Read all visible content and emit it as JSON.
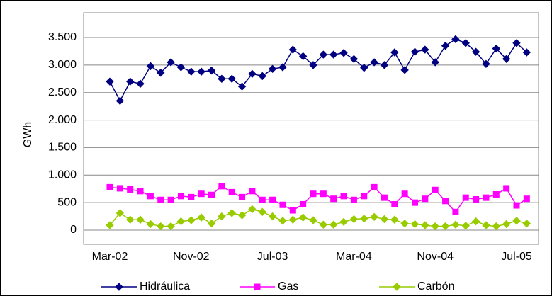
{
  "chart_data": {
    "type": "line",
    "y_label": "GWh",
    "categories": [
      "Mar-02",
      null,
      null,
      null,
      null,
      null,
      null,
      null,
      "Nov-02",
      null,
      null,
      null,
      null,
      null,
      null,
      null,
      "Jul-03",
      null,
      null,
      null,
      null,
      null,
      null,
      null,
      "Mar-04",
      null,
      null,
      null,
      null,
      null,
      null,
      null,
      "Nov-04",
      null,
      null,
      null,
      null,
      null,
      null,
      null,
      "Jul-05",
      null
    ],
    "series": [
      {
        "name": "Hidráulica",
        "color": "#000080",
        "marker": "diamond",
        "values": [
          2700,
          2350,
          2700,
          2660,
          2980,
          2860,
          3050,
          2960,
          2880,
          2880,
          2900,
          2750,
          2750,
          2610,
          2840,
          2800,
          2930,
          2960,
          3280,
          3160,
          3000,
          3190,
          3190,
          3220,
          3110,
          2950,
          3050,
          3000,
          3230,
          2910,
          3240,
          3280,
          3050,
          3350,
          3470,
          3400,
          3240,
          3020,
          3300,
          3110,
          3400,
          3230
        ]
      },
      {
        "name": "Gas",
        "color": "#ff00ff",
        "marker": "square",
        "values": [
          780,
          760,
          740,
          710,
          620,
          550,
          550,
          620,
          600,
          660,
          640,
          800,
          690,
          600,
          710,
          550,
          550,
          460,
          360,
          470,
          660,
          660,
          570,
          620,
          550,
          620,
          780,
          590,
          470,
          660,
          500,
          570,
          730,
          530,
          330,
          590,
          560,
          590,
          650,
          760,
          450,
          570
        ]
      },
      {
        "name": "Carbón",
        "color": "#99cc00",
        "marker": "diamond",
        "values": [
          90,
          310,
          190,
          190,
          110,
          70,
          70,
          160,
          180,
          230,
          120,
          250,
          310,
          270,
          380,
          330,
          250,
          170,
          190,
          230,
          180,
          100,
          100,
          150,
          200,
          210,
          240,
          200,
          190,
          120,
          110,
          90,
          70,
          70,
          100,
          80,
          160,
          90,
          70,
          110,
          170,
          120
        ]
      }
    ],
    "ylim": [
      0,
      3500
    ],
    "yticks": [
      0,
      {
        "value": 500,
        "label": "500"
      },
      {
        "value": 1000,
        "label": "1.000"
      },
      {
        "value": 1500,
        "label": "1.500"
      },
      {
        "value": 2000,
        "label": "2.000"
      },
      {
        "value": 2500,
        "label": "2.500"
      },
      {
        "value": 3000,
        "label": "3.000"
      },
      {
        "value": 3500,
        "label": "3.500"
      }
    ],
    "grid": true,
    "legend": "bottom"
  }
}
